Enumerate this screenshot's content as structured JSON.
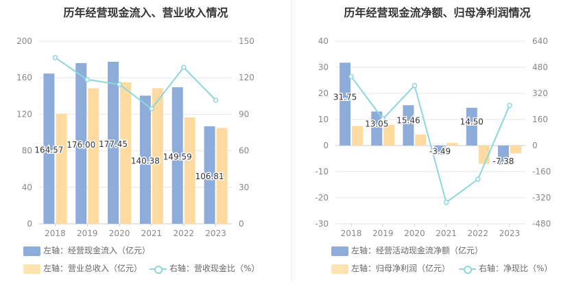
{
  "chart_data": [
    {
      "type": "bar",
      "title": "历年经营现金流入、营业收入情况",
      "categories": [
        "2018",
        "2019",
        "2020",
        "2021",
        "2022",
        "2023"
      ],
      "series": [
        {
          "name": "左轴：经营现金流入（亿元）",
          "axis": "left",
          "kind": "bar",
          "values": [
            164.57,
            176.0,
            177.45,
            140.38,
            149.59,
            106.81
          ],
          "labels": [
            "164.57",
            "176.00",
            "177.45",
            "140.38",
            "149.59",
            "106.81"
          ],
          "color": "#8eacd9"
        },
        {
          "name": "左轴：营业总收入（亿元）",
          "axis": "left",
          "kind": "bar",
          "values": [
            120.5,
            148.5,
            155,
            148.5,
            116.5,
            105
          ],
          "color": "#ffd99c"
        },
        {
          "name": "右轴：营收现金比（%）",
          "axis": "right",
          "kind": "line",
          "values": [
            136.5,
            118.5,
            114.5,
            94.5,
            128.5,
            101.5
          ],
          "color": "#8bd8dc"
        }
      ],
      "ylim_left": [
        0,
        200
      ],
      "yticks_left": [
        "0",
        "40",
        "80",
        "120",
        "160",
        "200"
      ],
      "ylim_right": [
        0,
        150
      ],
      "yticks_right": [
        "0",
        "30",
        "60",
        "90",
        "120",
        "150"
      ],
      "grid": true,
      "legend_position": "bottom"
    },
    {
      "type": "bar",
      "title": "历年经营现金流净额、归母净利润情况",
      "categories": [
        "2018",
        "2019",
        "2020",
        "2021",
        "2022",
        "2023"
      ],
      "series": [
        {
          "name": "左轴：经营活动现金流净额（亿元）",
          "axis": "left",
          "kind": "bar",
          "values": [
            31.75,
            13.05,
            15.46,
            -3.49,
            14.5,
            -7.38
          ],
          "labels": [
            "31.75",
            "13.05",
            "15.46",
            "-3.49",
            "14.50",
            "-7.38"
          ],
          "color": "#8eacd9"
        },
        {
          "name": "左轴：归母净利润（亿元）",
          "axis": "left",
          "kind": "bar",
          "values": [
            7.5,
            8,
            4.2,
            1,
            -7,
            -3
          ],
          "color": "#ffd99c"
        },
        {
          "name": "右轴：净现比（%）",
          "axis": "right",
          "kind": "line",
          "values": [
            423,
            163,
            368,
            -349,
            -207,
            246
          ],
          "color": "#8bd8dc"
        }
      ],
      "ylim_left": [
        -30,
        40
      ],
      "yticks_left": [
        "-30",
        "-20",
        "-10",
        "0",
        "10",
        "20",
        "30",
        "40"
      ],
      "ylim_right": [
        -480,
        640
      ],
      "yticks_right": [
        "-480",
        "-320",
        "-160",
        "0",
        "160",
        "320",
        "480",
        "640"
      ],
      "grid": true,
      "legend_position": "bottom"
    }
  ]
}
